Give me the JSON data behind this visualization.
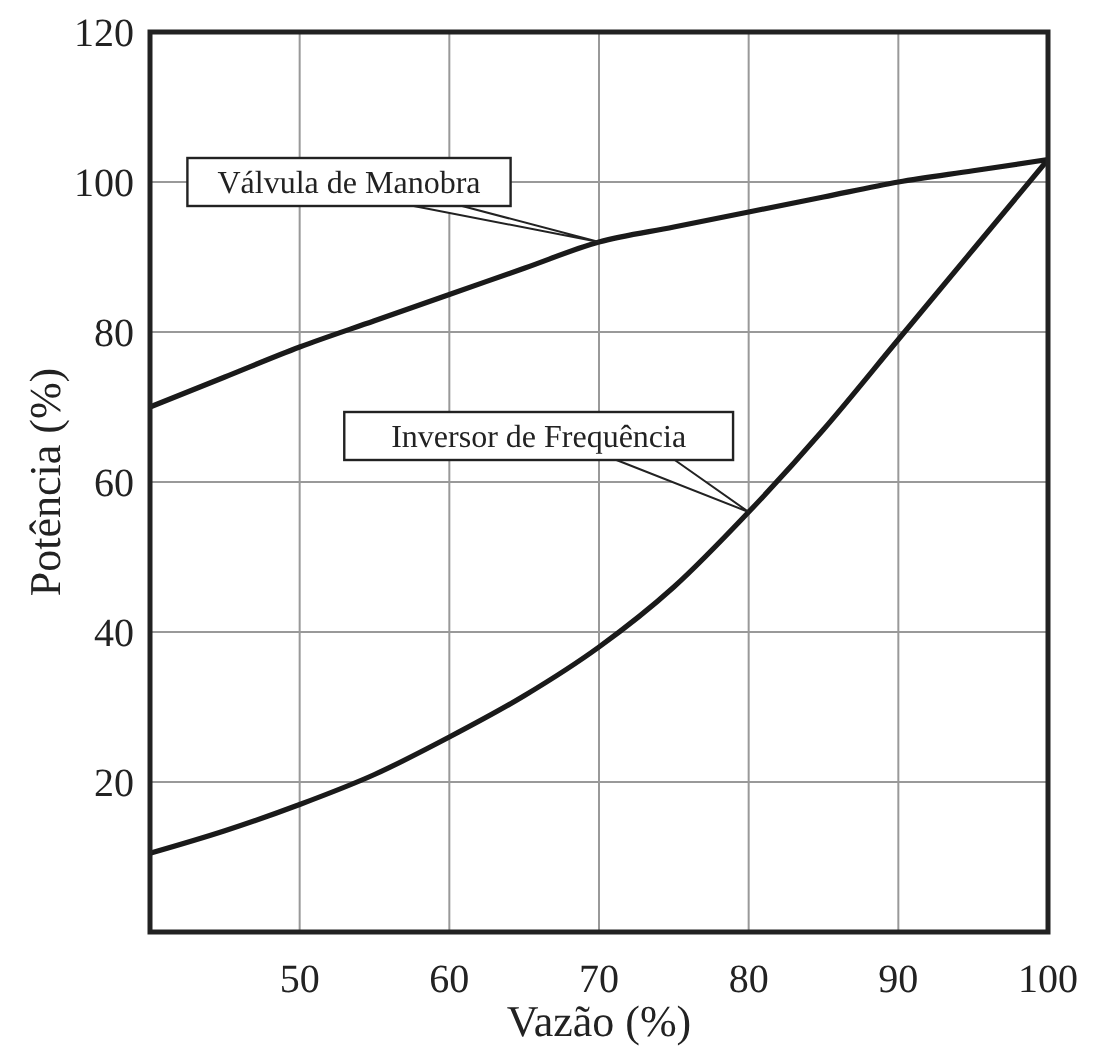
{
  "chart_data": {
    "type": "line",
    "xlabel": "Vazão (%)",
    "ylabel": "Potência (%)",
    "x": [
      40,
      45,
      50,
      55,
      60,
      65,
      70,
      75,
      80,
      85,
      90,
      95,
      100
    ],
    "xlim": [
      40,
      100
    ],
    "xticks": [
      50,
      60,
      70,
      80,
      90,
      100
    ],
    "ylim": [
      0,
      120
    ],
    "yticks": [
      20,
      40,
      60,
      80,
      100,
      120
    ],
    "grid": true,
    "marker": "none",
    "line_style": "solid",
    "series": [
      {
        "color": "#1a1a1a",
        "values": [
          70,
          74,
          78,
          81.5,
          85,
          88.5,
          92,
          94,
          96,
          98,
          100,
          101.5,
          103
        ]
      },
      {
        "color": "#1a1a1a",
        "values": [
          10.5,
          13.5,
          17,
          21,
          26,
          31.5,
          38,
          46,
          56,
          67,
          79,
          91,
          103
        ]
      }
    ],
    "annotations": [
      {
        "text": "Válvula de Manobra",
        "x": 70,
        "y": 92
      },
      {
        "text": "Inversor de Frequência",
        "x": 80,
        "y": 56
      }
    ]
  }
}
